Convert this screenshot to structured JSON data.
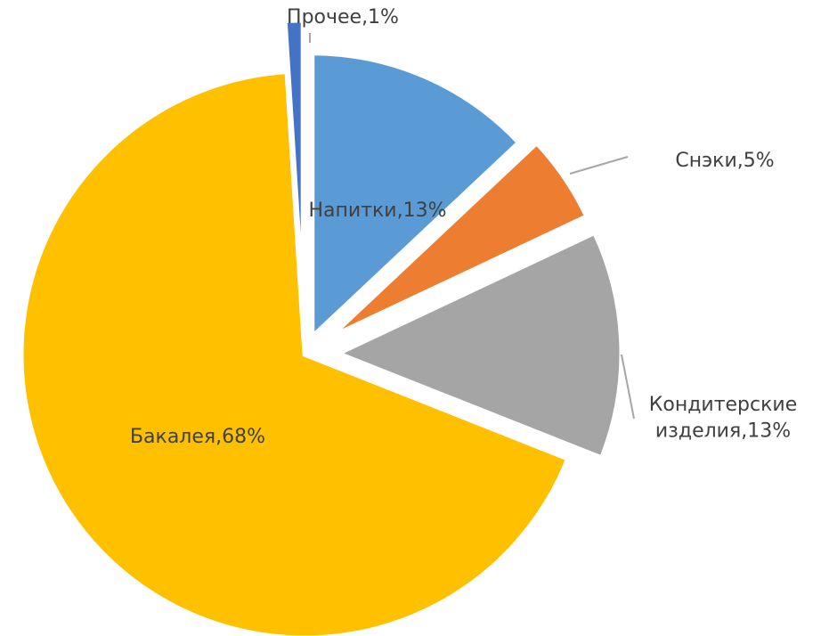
{
  "chart_data": {
    "type": "pie",
    "start_angle_deg": 0,
    "direction": "clockwise",
    "exploded": true,
    "slices": [
      {
        "name": "Напитки",
        "value": 13,
        "label_lines": [
          "Напитки,13%"
        ],
        "color": "#5b9bd5"
      },
      {
        "name": "Снэки",
        "value": 5,
        "label_lines": [
          "Снэки,5%"
        ],
        "color": "#ed7d31"
      },
      {
        "name": "Кондитерские изделия",
        "value": 13,
        "label_lines": [
          "Кондитерские",
          "изделия,13%"
        ],
        "color": "#a5a5a5"
      },
      {
        "name": "Бакалея",
        "value": 68,
        "label_lines": [
          "Бакалея,68%"
        ],
        "color": "#ffc000"
      },
      {
        "name": "Прочее",
        "value": 1,
        "label_lines": [
          "Прочее,1%"
        ],
        "color": "#4472c4"
      }
    ]
  }
}
